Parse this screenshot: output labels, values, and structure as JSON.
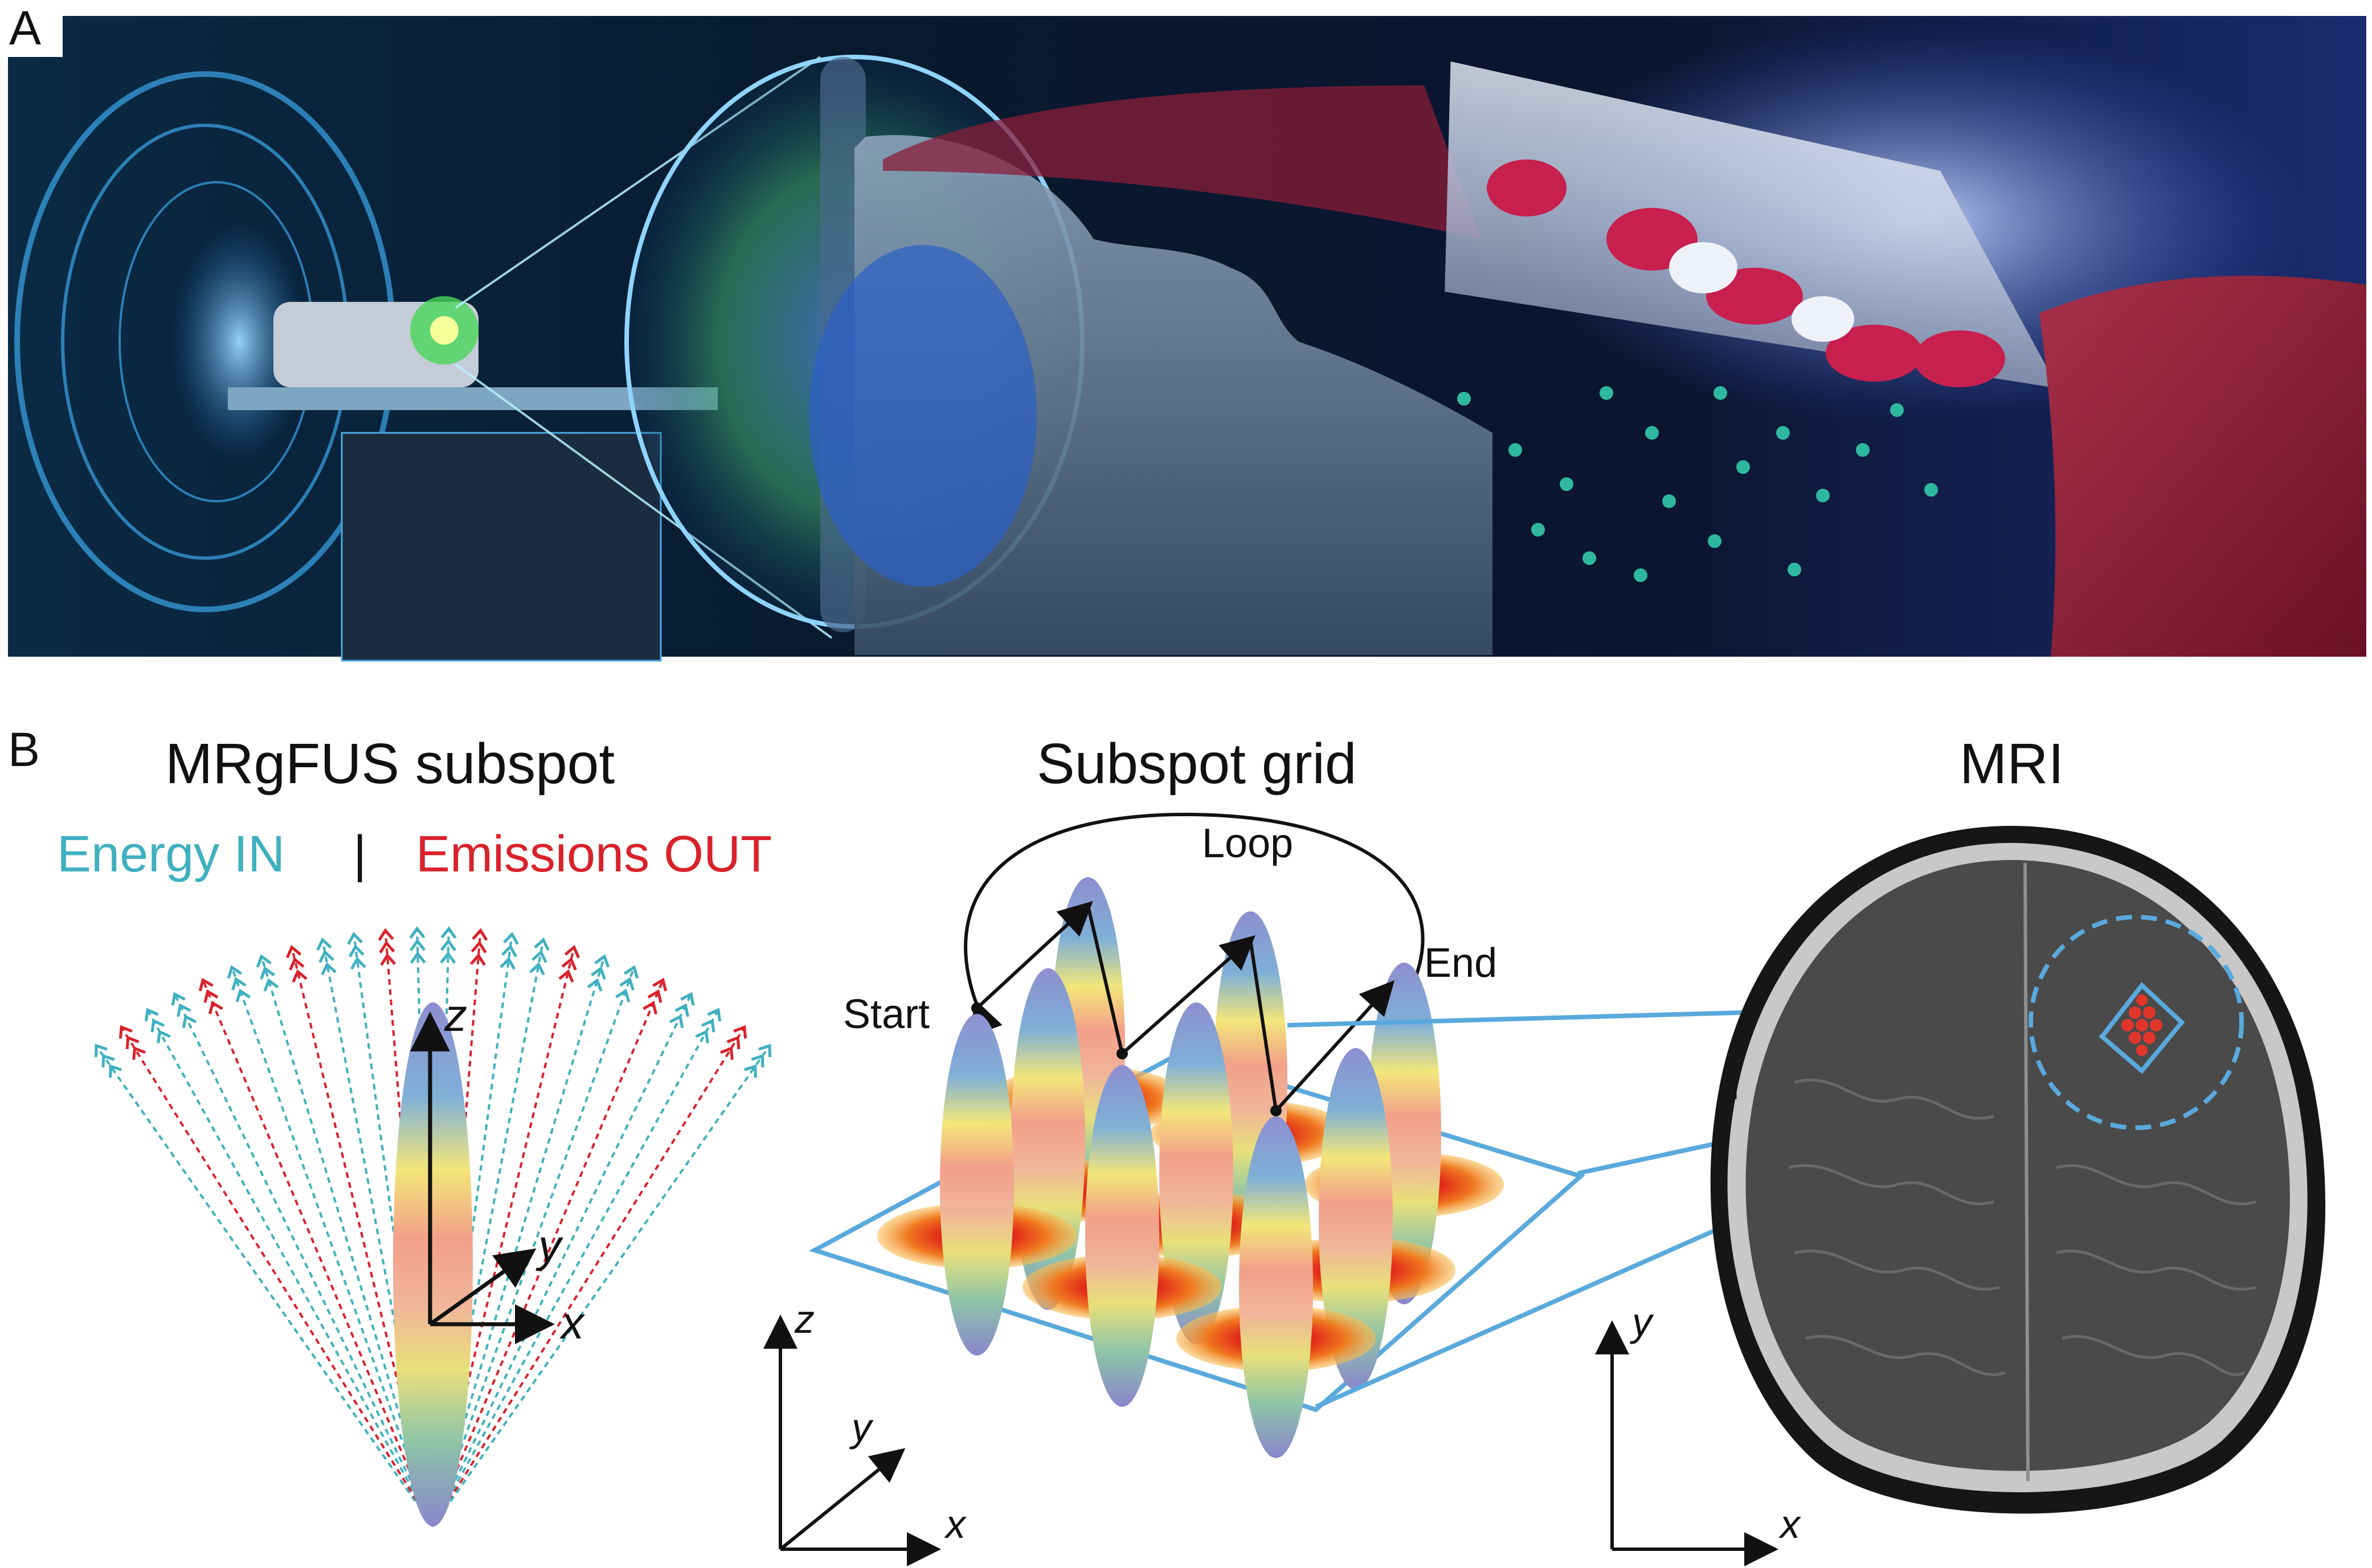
{
  "panel_a": {
    "label": "A"
  },
  "panel_b": {
    "label": "B",
    "subspot": {
      "title": "MRgFUS subspot",
      "energy_in": "Energy IN",
      "separator": "|",
      "emissions_out": "Emissions OUT",
      "axis_z": "z",
      "axis_y": "y",
      "axis_x": "x"
    },
    "grid": {
      "title": "Subspot grid",
      "loop": "Loop",
      "start": "Start",
      "end": "End",
      "axis_z": "z",
      "axis_y": "y",
      "axis_x": "x"
    },
    "mri": {
      "title": "MRI",
      "axis_y": "y",
      "axis_x": "x"
    }
  },
  "colors": {
    "energy_in": "#3fb0c0",
    "emissions_out": "#d9222a",
    "grid_outline": "#5aa9dc",
    "arrow": "#111111"
  },
  "icons": {
    "mri_scanner": "mri-scanner-illustration",
    "patient_head": "patient-head-illustration",
    "blood_vessel": "blood-vessel-illustration",
    "brain_scan": "brain-mri-scan"
  }
}
